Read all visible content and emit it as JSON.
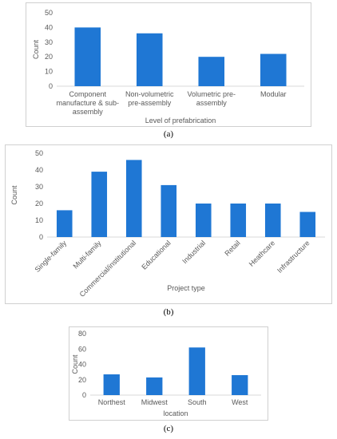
{
  "chart_data": [
    {
      "type": "bar",
      "categories": [
        "Component manufacture & sub-assembly",
        "Non-volumetric pre-assembly",
        "Volumetric pre-assembly",
        "Modular"
      ],
      "category_lines": [
        [
          "Component",
          "manufacture & sub-",
          "assembly"
        ],
        [
          "Non-volumetric",
          "pre-assembly"
        ],
        [
          "Volumetric pre-",
          "assembly"
        ],
        [
          "Modular"
        ]
      ],
      "values": [
        40,
        36,
        20,
        22
      ],
      "xlabel": "Level of prefabrication",
      "ylabel": "Count",
      "ylim": [
        0,
        50
      ],
      "yticks": [
        "0",
        "10",
        "20",
        "30",
        "40",
        "50"
      ],
      "grid": false,
      "color": "#1f77d4",
      "caption": "(a)"
    },
    {
      "type": "bar",
      "categories": [
        "Single-family",
        "Multi-family",
        "Commercial/institutional",
        "Educational",
        "Industrial",
        "Retail",
        "Heathcare",
        "Infrastructure"
      ],
      "values": [
        16,
        39,
        46,
        31,
        20,
        20,
        20,
        15
      ],
      "xlabel": "Project type",
      "ylabel": "Count",
      "ylim": [
        0,
        50
      ],
      "yticks": [
        "0",
        "10",
        "20",
        "30",
        "40",
        "50"
      ],
      "grid": false,
      "color": "#1f77d4",
      "caption": "(b)"
    },
    {
      "type": "bar",
      "categories": [
        "Northest",
        "Midwest",
        "South",
        "West"
      ],
      "values": [
        27,
        23,
        62,
        26
      ],
      "xlabel": "location",
      "ylabel": "Count",
      "ylim": [
        0,
        80
      ],
      "yticks": [
        "0",
        "20",
        "40",
        "60",
        "80"
      ],
      "grid": false,
      "color": "#1f77d4",
      "caption": "(c)"
    }
  ]
}
